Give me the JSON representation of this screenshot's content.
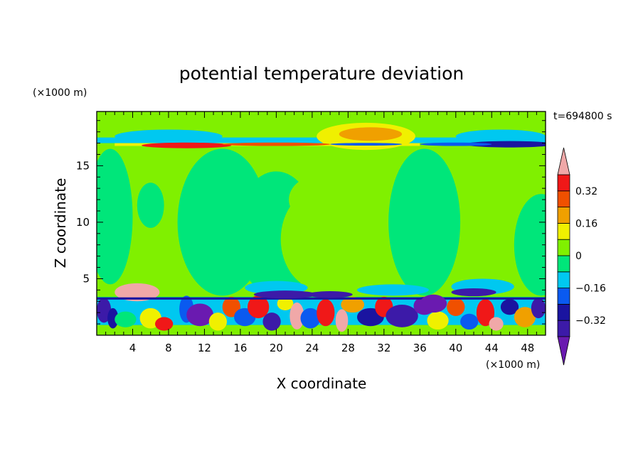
{
  "chart_data": {
    "type": "heatmap",
    "title": "potential temperature deviation",
    "time_label": "t=694800 s",
    "xlabel": "X coordinate",
    "ylabel": "Z coordinate",
    "x_unit": "(×1000 m)",
    "y_unit": "(×1000 m)",
    "xlim": [
      0,
      50
    ],
    "ylim": [
      0,
      19.8
    ],
    "x_ticks": [
      4,
      8,
      12,
      16,
      20,
      24,
      28,
      32,
      36,
      40,
      44,
      48
    ],
    "y_ticks": [
      5,
      10,
      15
    ],
    "colorbar": {
      "levels": [
        -0.4,
        -0.32,
        -0.24,
        -0.16,
        -0.08,
        0,
        0.08,
        0.16,
        0.24,
        0.32,
        0.4
      ],
      "labels": [
        "0.32",
        "0.16",
        "0",
        "−0.16",
        "−0.32"
      ],
      "label_values": [
        0.32,
        0.16,
        0,
        -0.16,
        -0.32
      ],
      "colors": [
        "#6a1ab0",
        "#3c1aa8",
        "#1a14a0",
        "#0a5af0",
        "#00c8f0",
        "#00e67a",
        "#80f000",
        "#f0f000",
        "#f0a000",
        "#f05000",
        "#f01818",
        "#f0a8a8"
      ]
    }
  }
}
